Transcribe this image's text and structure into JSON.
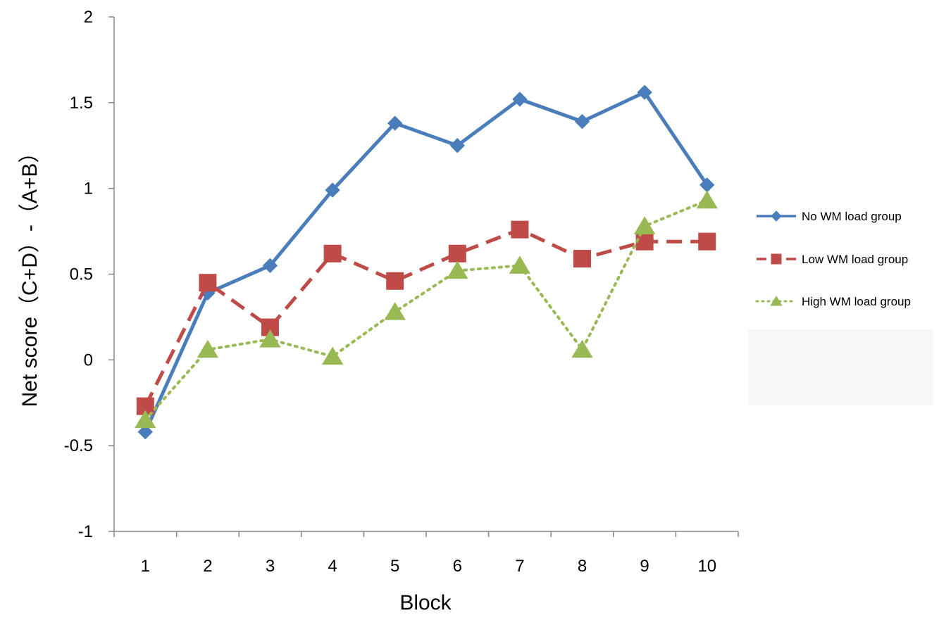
{
  "chart_data": {
    "type": "line",
    "title": "",
    "xlabel": "Block",
    "ylabel": "Net score（C+D）-（A+B）",
    "categories": [
      "1",
      "2",
      "3",
      "4",
      "5",
      "6",
      "7",
      "8",
      "9",
      "10"
    ],
    "ylim": [
      -1,
      2
    ],
    "yticks": [
      "-1",
      "-0.5",
      "0",
      "0.5",
      "1",
      "1.5",
      "2"
    ],
    "grid": false,
    "legend_position": "right",
    "series": [
      {
        "name": "No WM load group",
        "values": [
          -0.42,
          0.39,
          0.55,
          0.99,
          1.38,
          1.25,
          1.52,
          1.39,
          1.56,
          1.02
        ],
        "color": "#4a7ebb",
        "line_style": "solid",
        "marker": "diamond"
      },
      {
        "name": "Low WM load group",
        "values": [
          -0.27,
          0.45,
          0.19,
          0.62,
          0.46,
          0.62,
          0.76,
          0.59,
          0.69,
          0.69
        ],
        "color": "#be4b48",
        "line_style": "dashed",
        "marker": "square"
      },
      {
        "name": "High WM load group",
        "values": [
          -0.35,
          0.06,
          0.12,
          0.02,
          0.28,
          0.52,
          0.55,
          0.06,
          0.78,
          0.93
        ],
        "color": "#98b954",
        "line_style": "dotted",
        "marker": "triangle"
      }
    ]
  }
}
